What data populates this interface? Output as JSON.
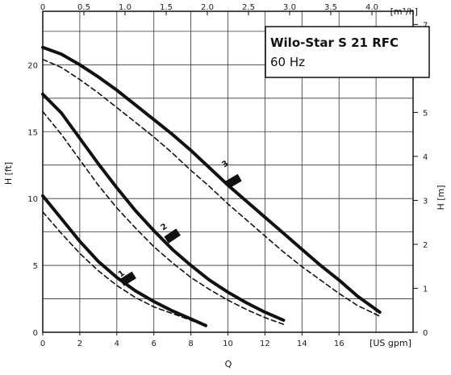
{
  "chart_data": {
    "type": "line",
    "title": "Wilo-Star S 21 RFC",
    "subtitle": "60 Hz",
    "xlabel": "Q",
    "x_unit": "[US gpm]",
    "x_top_unit": "[m³/h]",
    "ylabel_left": "H [ft]",
    "ylabel_right": "H [m]",
    "xlim": [
      0,
      20
    ],
    "ylim": [
      0,
      24
    ],
    "x_top_lim": [
      0,
      4.5
    ],
    "y_right_lim": [
      0,
      7.3
    ],
    "x_ticks": [
      "0",
      "2",
      "4",
      "6",
      "8",
      "10",
      "12",
      "14",
      "16"
    ],
    "x_ticks_top": [
      "0",
      "0.5",
      "1.0",
      "1.5",
      "2.0",
      "2.5",
      "3.0",
      "3.5",
      "4.0"
    ],
    "y_ticks_left": [
      "0",
      "5",
      "10",
      "15",
      "20"
    ],
    "y_ticks_right": [
      "0",
      "1",
      "2",
      "3",
      "4",
      "5",
      "6",
      "7"
    ],
    "grid": true,
    "series": [
      {
        "name": "1",
        "style": "solid",
        "x": [
          0,
          1,
          2,
          3,
          4,
          5,
          6,
          7,
          8,
          8.8
        ],
        "y": [
          10.2,
          8.5,
          6.8,
          5.3,
          4.1,
          3.1,
          2.3,
          1.6,
          1.0,
          0.5
        ]
      },
      {
        "name": "1",
        "style": "dashed",
        "x": [
          0,
          1,
          2,
          3,
          4,
          5,
          6,
          7,
          8,
          8.7
        ],
        "y": [
          9.0,
          7.4,
          5.9,
          4.6,
          3.5,
          2.6,
          1.9,
          1.4,
          0.9,
          0.5
        ]
      },
      {
        "name": "2",
        "style": "solid",
        "x": [
          0,
          1,
          2,
          3,
          4,
          5,
          6,
          7,
          8,
          9,
          10,
          11,
          12,
          13
        ],
        "y": [
          17.8,
          16.4,
          14.5,
          12.6,
          10.8,
          9.1,
          7.6,
          6.2,
          5.0,
          3.9,
          3.0,
          2.2,
          1.5,
          0.9
        ]
      },
      {
        "name": "2",
        "style": "dashed",
        "x": [
          0,
          1,
          2,
          3,
          4,
          5,
          6,
          7,
          8,
          9,
          10,
          11,
          12,
          13
        ],
        "y": [
          16.5,
          14.8,
          12.9,
          11.0,
          9.3,
          7.8,
          6.4,
          5.2,
          4.1,
          3.2,
          2.4,
          1.7,
          1.1,
          0.6
        ]
      },
      {
        "name": "3",
        "style": "solid",
        "x": [
          0,
          1,
          2,
          3,
          4,
          5,
          6,
          7,
          8,
          9,
          10,
          11,
          12,
          13,
          14,
          15,
          16,
          17,
          18.2
        ],
        "y": [
          21.3,
          20.8,
          20.0,
          19.1,
          18.1,
          17.0,
          15.9,
          14.8,
          13.6,
          12.3,
          11.0,
          9.8,
          8.6,
          7.4,
          6.2,
          5.0,
          3.9,
          2.7,
          1.5
        ]
      },
      {
        "name": "3",
        "style": "dashed",
        "x": [
          0,
          1,
          2,
          3,
          4,
          5,
          6,
          7,
          8,
          9,
          10,
          11,
          12,
          13,
          14,
          15,
          16,
          17,
          18.2
        ],
        "y": [
          20.4,
          19.8,
          18.9,
          17.9,
          16.8,
          15.7,
          14.6,
          13.4,
          12.1,
          10.9,
          9.6,
          8.4,
          7.2,
          6.0,
          4.9,
          3.9,
          2.9,
          2.0,
          1.2
        ]
      }
    ],
    "curve_labels": [
      {
        "text": "1",
        "x": 4.2,
        "y": 4.1
      },
      {
        "text": "2",
        "x": 6.5,
        "y": 7.6
      },
      {
        "text": "3",
        "x": 9.8,
        "y": 12.3
      }
    ],
    "speed_markers": [
      {
        "x": 4.6,
        "y": 4.0,
        "angle": -32
      },
      {
        "x": 7.0,
        "y": 7.2,
        "angle": -34
      },
      {
        "x": 10.3,
        "y": 11.3,
        "angle": -30
      }
    ]
  }
}
